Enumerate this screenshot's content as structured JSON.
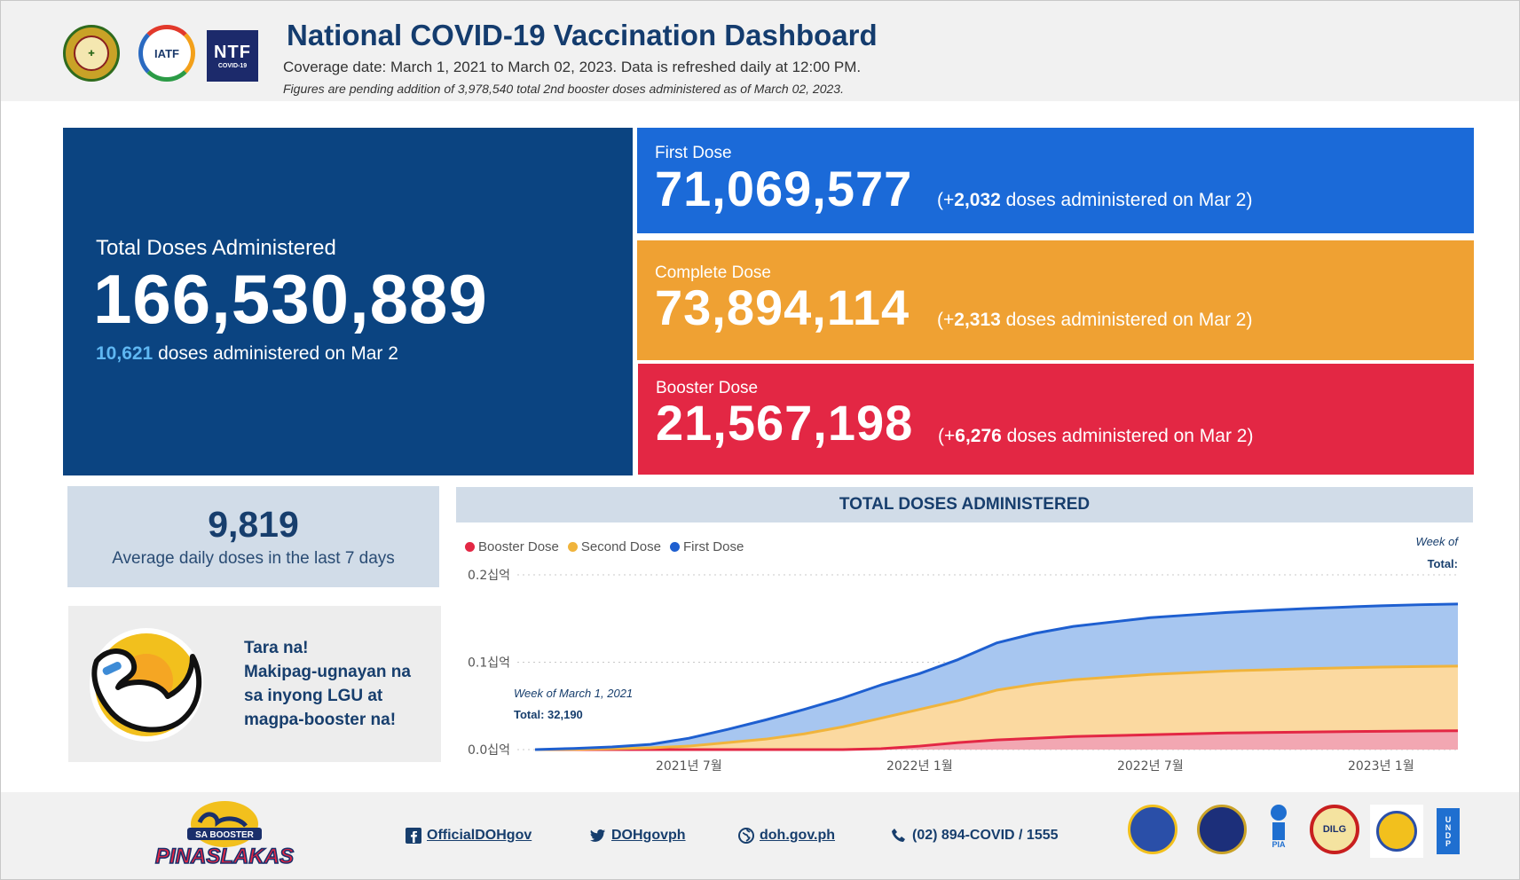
{
  "header": {
    "title": "National COVID-19 Vaccination Dashboard",
    "coverage": "Coverage date: March 1, 2021 to March 02, 2023. Data is refreshed daily at 12:00 PM.",
    "pending_note": "Figures are pending addition of 3,978,540 total 2nd booster doses administered as of March 02, 2023.",
    "logos": [
      {
        "name": "doh-seal-icon"
      },
      {
        "name": "iatf-logo-icon",
        "text": "IATF"
      },
      {
        "name": "ntf-logo-icon",
        "text": "NTF",
        "sub": "COVID-19"
      }
    ]
  },
  "total": {
    "label": "Total Doses Administered",
    "value": "166,530,889",
    "today_value": "10,621",
    "today_text": " doses administered on Mar 2"
  },
  "doses": [
    {
      "label": "First Dose",
      "value": "71,069,577",
      "prefix": "(+",
      "delta": "2,032",
      "suffix": " doses administered on Mar 2)",
      "color": "#1b6ad8"
    },
    {
      "label": "Complete Dose",
      "value": "73,894,114",
      "prefix": "(+",
      "delta": "2,313",
      "suffix": " doses administered on Mar 2)",
      "color": "#efa133"
    },
    {
      "label": "Booster Dose",
      "value": "21,567,198",
      "prefix": "(+",
      "delta": "6,276",
      "suffix": " doses administered on Mar 2)",
      "color": "#e32744"
    }
  ],
  "average": {
    "value": "9,819",
    "label": "Average daily doses in the last 7 days"
  },
  "promo": {
    "lines": [
      "Tara na!",
      "Makipag-ugnayan na",
      "sa inyong LGU at",
      "magpa-booster na!"
    ]
  },
  "chart_data": {
    "type": "area",
    "title": "TOTAL DOSES ADMINISTERED",
    "stacked": true,
    "x": [
      "2021-03",
      "2021-04",
      "2021-05",
      "2021-06",
      "2021-07",
      "2021-08",
      "2021-09",
      "2021-10",
      "2021-11",
      "2021-12",
      "2022-01",
      "2022-02",
      "2022-03",
      "2022-04",
      "2022-05",
      "2022-06",
      "2022-07",
      "2022-08",
      "2022-09",
      "2022-10",
      "2022-11",
      "2022-12",
      "2023-01",
      "2023-02",
      "2023-03"
    ],
    "series": [
      {
        "name": "Booster Dose",
        "color": "#e32744",
        "values": [
          0,
          0,
          0,
          0,
          0,
          0,
          0,
          0,
          0,
          0.001,
          0.004,
          0.008,
          0.011,
          0.013,
          0.015,
          0.016,
          0.017,
          0.018,
          0.019,
          0.0195,
          0.02,
          0.0205,
          0.021,
          0.0213,
          0.0216
        ]
      },
      {
        "name": "Second Dose",
        "color": "#f0b43c",
        "values": [
          0,
          0.0003,
          0.001,
          0.002,
          0.004,
          0.008,
          0.012,
          0.018,
          0.026,
          0.035,
          0.042,
          0.048,
          0.057,
          0.062,
          0.065,
          0.067,
          0.069,
          0.07,
          0.071,
          0.0718,
          0.0725,
          0.073,
          0.0734,
          0.0737,
          0.0739
        ]
      },
      {
        "name": "First Dose",
        "color": "#1e5fd0",
        "values": [
          0,
          0.001,
          0.002,
          0.004,
          0.009,
          0.015,
          0.022,
          0.028,
          0.033,
          0.038,
          0.041,
          0.047,
          0.054,
          0.058,
          0.061,
          0.063,
          0.065,
          0.066,
          0.067,
          0.068,
          0.0688,
          0.0695,
          0.0702,
          0.0708,
          0.0711
        ]
      }
    ],
    "y_tick_labels": [
      "0.0십억",
      "0.1십억",
      "0.2십억"
    ],
    "y_ticks": [
      0,
      0.1,
      0.2
    ],
    "ylim": [
      0,
      0.2
    ],
    "x_tick_labels": [
      "2021년 7월",
      "2022년 1월",
      "2022년 7월",
      "2023년 1월"
    ],
    "x_tick_positions": [
      "2021-07",
      "2022-01",
      "2022-07",
      "2023-01"
    ],
    "legend_position": "top-left",
    "annotations": [
      {
        "title": "Week of March 1, 2021",
        "total": "Total: 32,190",
        "at": "start"
      },
      {
        "title": "Week of",
        "total": "Total:",
        "at": "end"
      }
    ],
    "grid": "horizontal-dotted"
  },
  "footer": {
    "links": [
      {
        "icon": "facebook-icon",
        "text": "OfficialDOHgov"
      },
      {
        "icon": "twitter-icon",
        "text": "DOHgovph"
      },
      {
        "icon": "globe-icon",
        "text": "doh.gov.ph"
      },
      {
        "icon": "phone-icon",
        "text": "(02) 894-COVID / 1555"
      }
    ],
    "campaign": {
      "line1": "SA BOOSTER",
      "line2": "PINASLAKAS"
    },
    "partner_seals": [
      {
        "name": "pcoo-seal-icon"
      },
      {
        "name": "dnd-seal-icon"
      },
      {
        "name": "pia-logo-icon",
        "text": "PIA"
      },
      {
        "name": "dilg-seal-icon",
        "text": "DILG"
      },
      {
        "name": "dict-seal-icon"
      },
      {
        "name": "undp-logo-icon",
        "text": "UNDP"
      }
    ]
  }
}
